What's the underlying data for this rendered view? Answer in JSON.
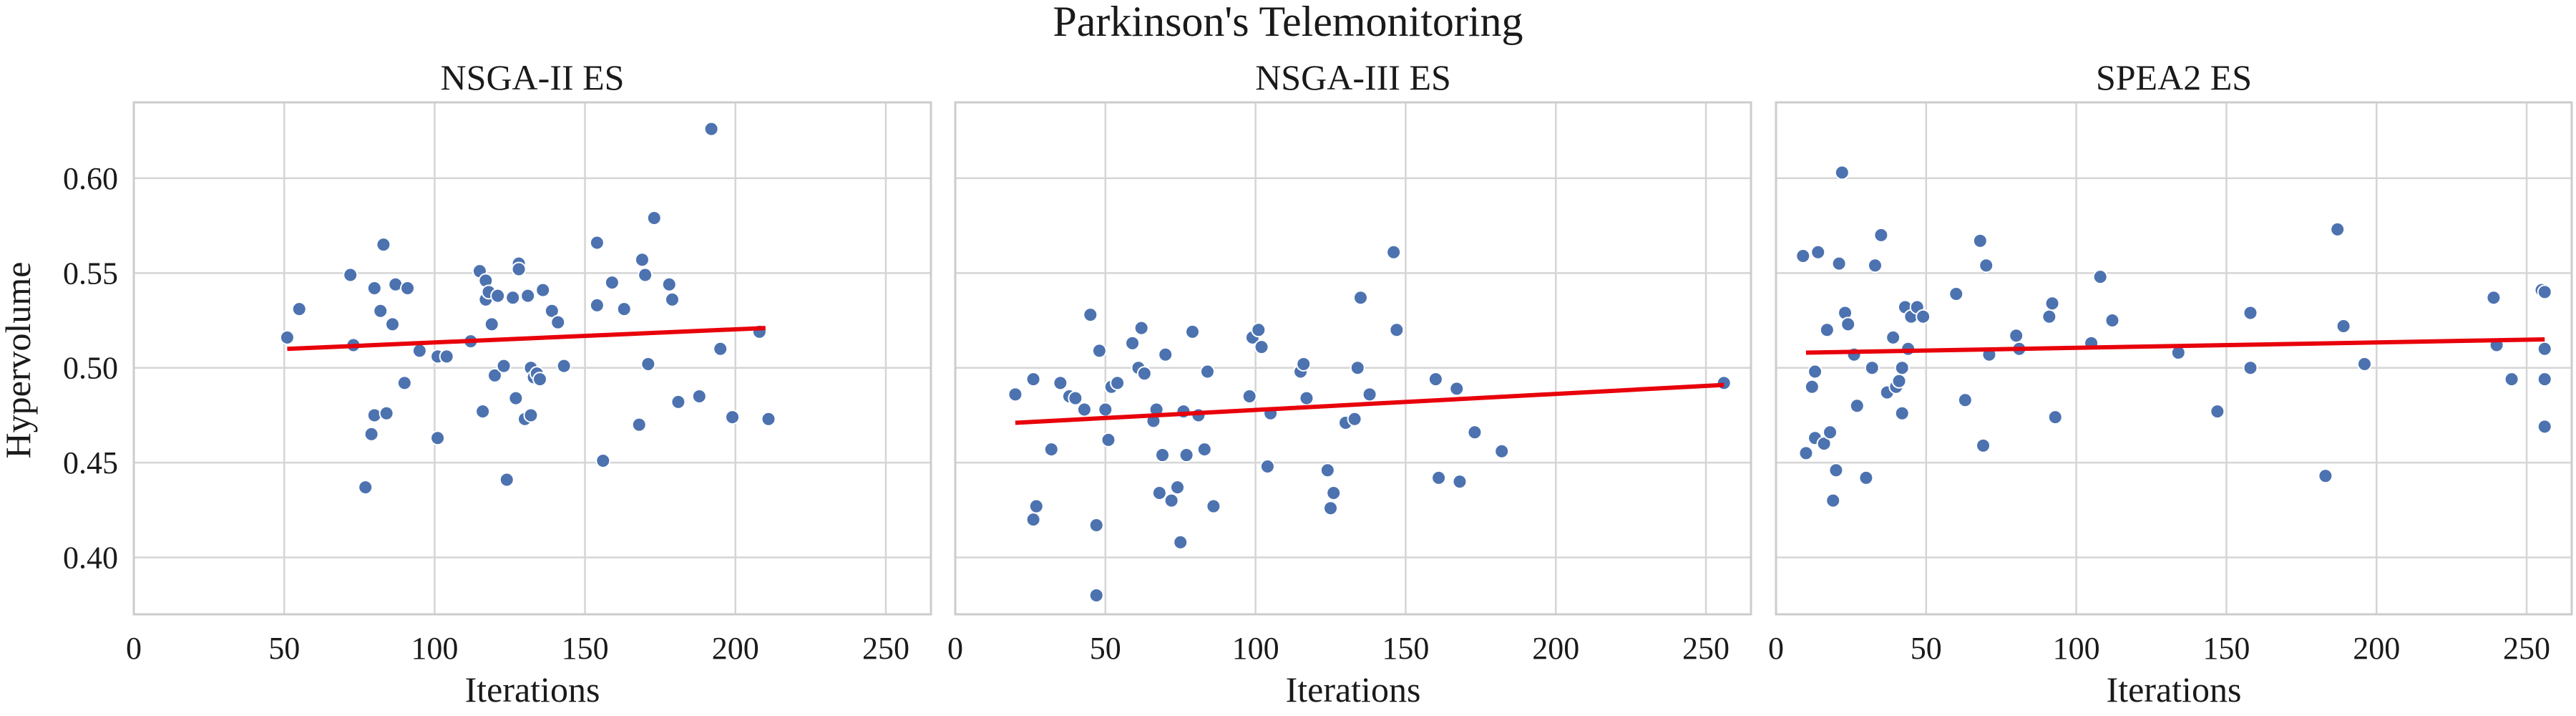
{
  "figure": {
    "suptitle": "Parkinson's Telemonitoring",
    "ylabel": "Hypervolume"
  },
  "chart_data": [
    {
      "type": "scatter",
      "title": "NSGA-II ES",
      "xlabel": "Iterations",
      "ylabel": "Hypervolume",
      "xlim": [
        0,
        265
      ],
      "ylim": [
        0.37,
        0.64
      ],
      "xticks": [
        0,
        50,
        100,
        150,
        200,
        250
      ],
      "yticks": [
        0.4,
        0.45,
        0.5,
        0.55,
        0.6
      ],
      "grid": true,
      "points": [
        [
          51,
          0.516
        ],
        [
          55,
          0.531
        ],
        [
          72,
          0.549
        ],
        [
          73,
          0.512
        ],
        [
          77,
          0.437
        ],
        [
          79,
          0.465
        ],
        [
          80,
          0.475
        ],
        [
          80,
          0.542
        ],
        [
          82,
          0.53
        ],
        [
          83,
          0.565
        ],
        [
          84,
          0.476
        ],
        [
          86,
          0.523
        ],
        [
          87,
          0.544
        ],
        [
          90,
          0.492
        ],
        [
          91,
          0.542
        ],
        [
          95,
          0.509
        ],
        [
          101,
          0.463
        ],
        [
          101,
          0.506
        ],
        [
          104,
          0.506
        ],
        [
          112,
          0.514
        ],
        [
          115,
          0.551
        ],
        [
          116,
          0.477
        ],
        [
          117,
          0.536
        ],
        [
          117,
          0.546
        ],
        [
          118,
          0.54
        ],
        [
          119,
          0.523
        ],
        [
          120,
          0.496
        ],
        [
          121,
          0.538
        ],
        [
          123,
          0.501
        ],
        [
          124,
          0.441
        ],
        [
          126,
          0.537
        ],
        [
          127,
          0.484
        ],
        [
          128,
          0.555
        ],
        [
          128,
          0.552
        ],
        [
          130,
          0.473
        ],
        [
          131,
          0.538
        ],
        [
          132,
          0.475
        ],
        [
          132,
          0.5
        ],
        [
          133,
          0.495
        ],
        [
          134,
          0.497
        ],
        [
          135,
          0.494
        ],
        [
          136,
          0.541
        ],
        [
          139,
          0.53
        ],
        [
          141,
          0.524
        ],
        [
          143,
          0.501
        ],
        [
          154,
          0.566
        ],
        [
          154,
          0.533
        ],
        [
          156,
          0.451
        ],
        [
          159,
          0.545
        ],
        [
          163,
          0.531
        ],
        [
          168,
          0.47
        ],
        [
          169,
          0.557
        ],
        [
          170,
          0.549
        ],
        [
          171,
          0.502
        ],
        [
          173,
          0.579
        ],
        [
          178,
          0.544
        ],
        [
          179,
          0.536
        ],
        [
          181,
          0.482
        ],
        [
          188,
          0.485
        ],
        [
          192,
          0.626
        ],
        [
          195,
          0.51
        ],
        [
          199,
          0.474
        ],
        [
          208,
          0.519
        ],
        [
          211,
          0.473
        ]
      ],
      "trend": {
        "x": [
          51,
          210
        ],
        "y": [
          0.51,
          0.521
        ],
        "color": "#e8000b"
      },
      "marker_color": "#4c72b0"
    },
    {
      "type": "scatter",
      "title": "NSGA-III ES",
      "xlabel": "Iterations",
      "ylabel": "",
      "xlim": [
        0,
        265
      ],
      "ylim": [
        0.37,
        0.64
      ],
      "xticks": [
        0,
        50,
        100,
        150,
        200,
        250
      ],
      "yticks": [
        0.4,
        0.45,
        0.5,
        0.55,
        0.6
      ],
      "grid": true,
      "points": [
        [
          20,
          0.486
        ],
        [
          26,
          0.42
        ],
        [
          26,
          0.494
        ],
        [
          27,
          0.427
        ],
        [
          32,
          0.457
        ],
        [
          35,
          0.492
        ],
        [
          38,
          0.485
        ],
        [
          40,
          0.484
        ],
        [
          43,
          0.478
        ],
        [
          45,
          0.528
        ],
        [
          47,
          0.417
        ],
        [
          47,
          0.38
        ],
        [
          48,
          0.509
        ],
        [
          50,
          0.478
        ],
        [
          51,
          0.462
        ],
        [
          52,
          0.49
        ],
        [
          54,
          0.492
        ],
        [
          59,
          0.513
        ],
        [
          61,
          0.5
        ],
        [
          62,
          0.521
        ],
        [
          63,
          0.497
        ],
        [
          66,
          0.472
        ],
        [
          67,
          0.478
        ],
        [
          68,
          0.434
        ],
        [
          69,
          0.454
        ],
        [
          70,
          0.507
        ],
        [
          72,
          0.43
        ],
        [
          74,
          0.437
        ],
        [
          75,
          0.408
        ],
        [
          76,
          0.477
        ],
        [
          77,
          0.454
        ],
        [
          79,
          0.519
        ],
        [
          81,
          0.475
        ],
        [
          83,
          0.457
        ],
        [
          84,
          0.498
        ],
        [
          86,
          0.427
        ],
        [
          98,
          0.485
        ],
        [
          99,
          0.516
        ],
        [
          101,
          0.52
        ],
        [
          102,
          0.511
        ],
        [
          105,
          0.476
        ],
        [
          104,
          0.448
        ],
        [
          115,
          0.498
        ],
        [
          116,
          0.502
        ],
        [
          117,
          0.484
        ],
        [
          124,
          0.446
        ],
        [
          125,
          0.426
        ],
        [
          126,
          0.434
        ],
        [
          130,
          0.471
        ],
        [
          133,
          0.473
        ],
        [
          134,
          0.5
        ],
        [
          135,
          0.537
        ],
        [
          138,
          0.486
        ],
        [
          146,
          0.561
        ],
        [
          147,
          0.52
        ],
        [
          160,
          0.494
        ],
        [
          161,
          0.442
        ],
        [
          167,
          0.489
        ],
        [
          168,
          0.44
        ],
        [
          173,
          0.466
        ],
        [
          182,
          0.456
        ],
        [
          256,
          0.492
        ]
      ],
      "trend": {
        "x": [
          20,
          256
        ],
        "y": [
          0.471,
          0.491
        ],
        "color": "#e8000b"
      },
      "marker_color": "#4c72b0"
    },
    {
      "type": "scatter",
      "title": "SPEA2 ES",
      "xlabel": "Iterations",
      "ylabel": "",
      "xlim": [
        0,
        265
      ],
      "ylim": [
        0.37,
        0.64
      ],
      "xticks": [
        0,
        50,
        100,
        150,
        200,
        250
      ],
      "yticks": [
        0.4,
        0.45,
        0.5,
        0.55,
        0.6
      ],
      "grid": true,
      "points": [
        [
          9,
          0.559
        ],
        [
          10,
          0.455
        ],
        [
          12,
          0.49
        ],
        [
          13,
          0.498
        ],
        [
          13,
          0.463
        ],
        [
          14,
          0.561
        ],
        [
          16,
          0.46
        ],
        [
          17,
          0.52
        ],
        [
          18,
          0.466
        ],
        [
          19,
          0.43
        ],
        [
          20,
          0.446
        ],
        [
          21,
          0.555
        ],
        [
          22,
          0.603
        ],
        [
          23,
          0.529
        ],
        [
          24,
          0.523
        ],
        [
          26,
          0.507
        ],
        [
          27,
          0.48
        ],
        [
          30,
          0.442
        ],
        [
          32,
          0.5
        ],
        [
          33,
          0.554
        ],
        [
          35,
          0.57
        ],
        [
          37,
          0.487
        ],
        [
          39,
          0.516
        ],
        [
          40,
          0.49
        ],
        [
          41,
          0.493
        ],
        [
          42,
          0.476
        ],
        [
          42,
          0.5
        ],
        [
          43,
          0.532
        ],
        [
          44,
          0.51
        ],
        [
          45,
          0.527
        ],
        [
          47,
          0.532
        ],
        [
          49,
          0.527
        ],
        [
          60,
          0.539
        ],
        [
          63,
          0.483
        ],
        [
          68,
          0.567
        ],
        [
          69,
          0.459
        ],
        [
          70,
          0.554
        ],
        [
          71,
          0.507
        ],
        [
          80,
          0.517
        ],
        [
          81,
          0.51
        ],
        [
          91,
          0.527
        ],
        [
          92,
          0.534
        ],
        [
          93,
          0.474
        ],
        [
          105,
          0.513
        ],
        [
          108,
          0.548
        ],
        [
          112,
          0.525
        ],
        [
          134,
          0.508
        ],
        [
          147,
          0.477
        ],
        [
          158,
          0.529
        ],
        [
          158,
          0.5
        ],
        [
          183,
          0.443
        ],
        [
          187,
          0.573
        ],
        [
          189,
          0.522
        ],
        [
          196,
          0.502
        ],
        [
          239,
          0.537
        ],
        [
          240,
          0.512
        ],
        [
          245,
          0.494
        ],
        [
          255,
          0.541
        ],
        [
          256,
          0.54
        ],
        [
          256,
          0.51
        ],
        [
          256,
          0.494
        ],
        [
          256,
          0.469
        ]
      ],
      "trend": {
        "x": [
          10,
          256
        ],
        "y": [
          0.508,
          0.515
        ],
        "color": "#e8000b"
      },
      "marker_color": "#4c72b0"
    }
  ]
}
